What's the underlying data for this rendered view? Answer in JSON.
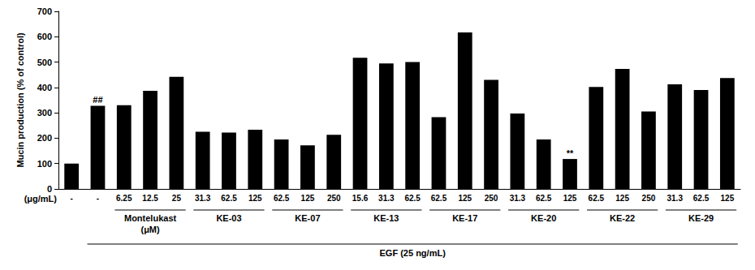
{
  "chart_data": {
    "type": "bar",
    "y_label": "Mucin production (% of control)",
    "x_unit_label": "(μg/mL)",
    "categories": [
      "-",
      "-",
      "6.25",
      "12.5",
      "25",
      "31.3",
      "62.5",
      "125",
      "62.5",
      "125",
      "250",
      "15.6",
      "31.3",
      "62.5",
      "62.5",
      "125",
      "250",
      "31.3",
      "62.5",
      "125",
      "62.5",
      "125",
      "250",
      "31.3",
      "62.5",
      "125"
    ],
    "values": [
      100,
      328,
      330,
      387,
      442,
      225,
      222,
      233,
      195,
      172,
      213,
      517,
      495,
      500,
      283,
      617,
      430,
      297,
      195,
      118,
      402,
      473,
      305,
      412,
      390,
      437
    ],
    "color": "#000000",
    "groups": [
      {
        "label": "Montelukast",
        "sublabel": "(μM)",
        "start": 2,
        "count": 3
      },
      {
        "label": "KE-03",
        "start": 5,
        "count": 3
      },
      {
        "label": "KE-07",
        "start": 8,
        "count": 3
      },
      {
        "label": "KE-13",
        "start": 11,
        "count": 3
      },
      {
        "label": "KE-17",
        "start": 14,
        "count": 3
      },
      {
        "label": "KE-20",
        "start": 17,
        "count": 3
      },
      {
        "label": "KE-22",
        "start": 20,
        "count": 3
      },
      {
        "label": "KE-29",
        "start": 23,
        "count": 3
      }
    ],
    "treatment": {
      "label": "EGF (25 ng/mL)",
      "start": 1
    },
    "annotations": [
      {
        "text": "##",
        "index": 1
      },
      {
        "text": "**",
        "index": 19
      }
    ],
    "ylim": [
      0,
      700
    ],
    "yticks": [
      0,
      100,
      200,
      300,
      400,
      500,
      600,
      700
    ],
    "grid": false
  }
}
